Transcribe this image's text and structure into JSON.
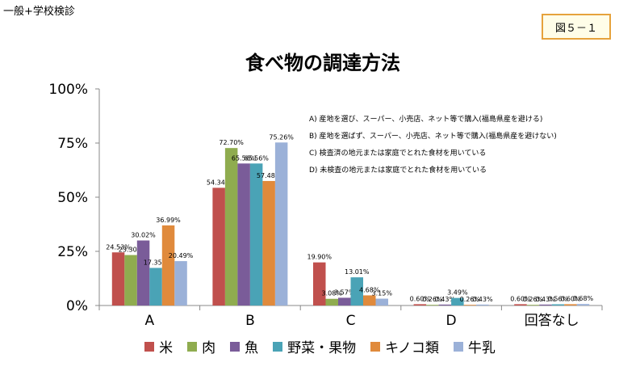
{
  "header": {
    "corner_label": "一般+学校検診",
    "figure_label": "図５－１"
  },
  "chart_data": {
    "type": "bar",
    "title": "食べ物の調達方法",
    "categories": [
      "A",
      "B",
      "C",
      "D",
      "回答なし"
    ],
    "ylim": [
      0,
      100
    ],
    "yticks": [
      "0%",
      "25%",
      "50%",
      "75%",
      "100%"
    ],
    "grid": false,
    "legend_position": "bottom",
    "series": [
      {
        "name": "米",
        "color": "#c0504d",
        "values": [
          24.53,
          54.34,
          19.9,
          0.6,
          0.6
        ],
        "labels": [
          "24.53%",
          "54.34%",
          "19.90%",
          "0.60%",
          "0.60%"
        ]
      },
      {
        "name": "肉",
        "color": "#8fac4f",
        "values": [
          23.3,
          72.7,
          3.08,
          0.26,
          0.26
        ],
        "labels": [
          "23.30%",
          "72.70%",
          "3.08%",
          "0.26%",
          "0.26%"
        ]
      },
      {
        "name": "魚",
        "color": "#7a5c99",
        "values": [
          30.02,
          65.56,
          3.57,
          0.43,
          0.43
        ],
        "labels": [
          "30.02%",
          "65.56%",
          "3.57%",
          "0.43%",
          "0.43%"
        ]
      },
      {
        "name": "野菜・果物",
        "color": "#4aa3b6",
        "values": [
          17.35,
          65.56,
          13.01,
          3.49,
          0.56
        ],
        "labels": [
          "17.35%",
          "65.56%",
          "13.01%",
          "3.49%",
          "0.56%"
        ]
      },
      {
        "name": "キノコ類",
        "color": "#e08a3c",
        "values": [
          36.99,
          57.48,
          4.68,
          0.26,
          0.6
        ],
        "labels": [
          "36.99%",
          "57.48%",
          "4.68%",
          "0.26%",
          "0.60%"
        ]
      },
      {
        "name": "牛乳",
        "color": "#9bb1d8",
        "values": [
          20.49,
          75.26,
          3.15,
          0.43,
          0.68
        ],
        "labels": [
          "20.49%",
          "75.26%",
          "3.15%",
          "0.43%",
          "0.68%"
        ]
      }
    ],
    "annotations": [
      "A) 産地を選び、スーパー、小売店、ネット等で購入(福島県産を避ける)",
      "B) 産地を選ばず、スーパー、小売店、ネット等で購入(福島県産を避けない)",
      "C) 検査済の地元または家庭でとれた食材を用いている",
      "D) 未検査の地元または家庭でとれた食材を用いている"
    ]
  }
}
